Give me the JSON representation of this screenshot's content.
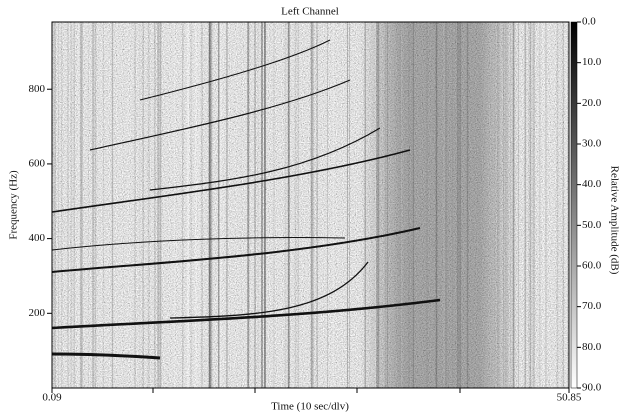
{
  "chart_data": {
    "type": "spectrogram",
    "title": "Left Channel",
    "x_label": "Time (10 sec/dlv)",
    "y_label": "Frequency (Hz)",
    "colorbar_label": "Relative Amplitude (dB)",
    "xlim": [
      0.09,
      50.85
    ],
    "xticks": [
      0.09,
      50.85
    ],
    "ylim": [
      0,
      980
    ],
    "yticks": [
      200,
      400,
      600,
      800
    ],
    "zlim": [
      0,
      90
    ],
    "zticks": [
      {
        "value": 0,
        "label": "0.0"
      },
      {
        "value": 10,
        "label": "10.0"
      },
      {
        "value": 20,
        "label": "20.0"
      },
      {
        "value": 30,
        "label": "30.0"
      },
      {
        "value": 40,
        "label": "40.0"
      },
      {
        "value": 50,
        "label": "50.0"
      },
      {
        "value": 60,
        "label": "60.0"
      },
      {
        "value": 70,
        "label": "70.0"
      },
      {
        "value": 80,
        "label": "80.0"
      },
      {
        "value": 90,
        "label": "90.0"
      }
    ],
    "colormap": [
      "#000000",
      "#ffffff"
    ]
  }
}
